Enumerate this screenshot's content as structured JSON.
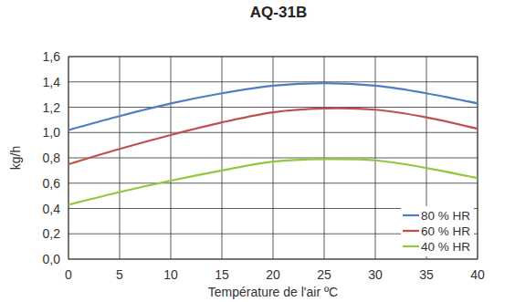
{
  "chart_data": {
    "type": "line",
    "title": "AQ-31B",
    "x_label": "Température de l'air ºC",
    "y_label": "kg/h",
    "x": [
      0,
      5,
      10,
      15,
      20,
      25,
      30,
      35,
      40
    ],
    "xlim": [
      0,
      40
    ],
    "xticks": [
      0,
      5,
      10,
      15,
      20,
      25,
      30,
      35,
      40
    ],
    "ylim": [
      0,
      1.6
    ],
    "yticks": [
      {
        "value": 0,
        "label": "0,0"
      },
      {
        "value": 0.2,
        "label": "0,2"
      },
      {
        "value": 0.4,
        "label": "0,4"
      },
      {
        "value": 0.6,
        "label": "0,6"
      },
      {
        "value": 0.8,
        "label": "0,8"
      },
      {
        "value": 1.0,
        "label": "1,0"
      },
      {
        "value": 1.2,
        "label": "1,2"
      },
      {
        "value": 1.4,
        "label": "1,4"
      },
      {
        "value": 1.6,
        "label": "1,6"
      }
    ],
    "grid": true,
    "legend": "lower right",
    "series": [
      {
        "name": "80 % HR",
        "color": "#4f7fbf",
        "values": [
          1.02,
          1.13,
          1.23,
          1.31,
          1.37,
          1.39,
          1.37,
          1.31,
          1.23
        ]
      },
      {
        "name": "60 % HR",
        "color": "#c0504d",
        "values": [
          0.75,
          0.87,
          0.98,
          1.08,
          1.16,
          1.19,
          1.18,
          1.12,
          1.03
        ]
      },
      {
        "name": "40 % HR",
        "color": "#92c83e",
        "values": [
          0.43,
          0.53,
          0.62,
          0.7,
          0.77,
          0.79,
          0.78,
          0.72,
          0.64
        ]
      }
    ]
  }
}
